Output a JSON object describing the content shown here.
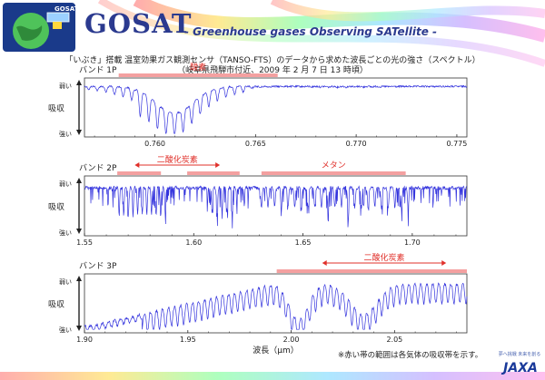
{
  "header": {
    "title": "GOSAT",
    "subtitle": "- Greenhouse gases Observing SATellite -",
    "logo_text": "GOSAT",
    "agency": "JAXA",
    "agency_tagline": "夢へ挑戦 未来を創る"
  },
  "captions": {
    "line1": "「いぶき」搭載 温室効果ガス観測センサ（TANSO-FTS）のデータから求めた波長ごとの光の強さ（スペクトル）",
    "line2": "（岐阜県飛騨市付近、2009 年 2 月 7 日 13 時頃）"
  },
  "footnote": "※赤い帯の範囲は各気体の吸収帯を示す。",
  "colors": {
    "spectrum": "#3333dd",
    "band_highlight": "#f4a0a0",
    "annotation": "#e0302a",
    "title": "#2b3a8f"
  },
  "chart_data": [
    {
      "type": "line",
      "title": "バンド 1P",
      "xlabel": "",
      "ylabel": "吸収",
      "y_top_label": "弱い",
      "y_bottom_label": "強い",
      "xlim": [
        0.7565,
        0.7755
      ],
      "xticks": [
        "0.760",
        "0.765",
        "0.770",
        "0.775"
      ],
      "xtick_values": [
        0.76,
        0.765,
        0.77,
        0.775
      ],
      "absorption_bands": [
        {
          "label": "酸素",
          "range": [
            0.7582,
            0.7661
          ]
        }
      ],
      "annotation_arrows": []
    },
    {
      "type": "line",
      "title": "バンド 2P",
      "xlabel": "",
      "ylabel": "吸収",
      "y_top_label": "弱い",
      "y_bottom_label": "強い",
      "xlim": [
        1.55,
        1.725
      ],
      "xticks": [
        "1.55",
        "1.60",
        "1.65",
        "1.70"
      ],
      "xtick_values": [
        1.55,
        1.6,
        1.65,
        1.7
      ],
      "absorption_bands": [
        {
          "label": "二酸化炭素",
          "range": [
            1.565,
            1.585
          ]
        },
        {
          "label": "",
          "range": [
            1.597,
            1.621
          ]
        },
        {
          "label": "メタン",
          "range": [
            1.631,
            1.697
          ]
        }
      ],
      "annotation_arrows": [
        {
          "label": "二酸化炭素",
          "from": 1.573,
          "to": 1.612
        }
      ]
    },
    {
      "type": "line",
      "title": "バンド 3P",
      "xlabel": "波長（μm）",
      "ylabel": "吸収",
      "y_top_label": "弱い",
      "y_bottom_label": "強い",
      "xlim": [
        1.9,
        2.085
      ],
      "xticks": [
        "1.90",
        "1.95",
        "2.00",
        "2.05"
      ],
      "xtick_values": [
        1.9,
        1.95,
        2.0,
        2.05
      ],
      "absorption_bands": [
        {
          "label": "二酸化炭素",
          "range": [
            1.993,
            2.085
          ]
        }
      ],
      "annotation_arrows": [
        {
          "label": "二酸化炭素",
          "from": 2.015,
          "to": 2.075
        }
      ]
    }
  ]
}
